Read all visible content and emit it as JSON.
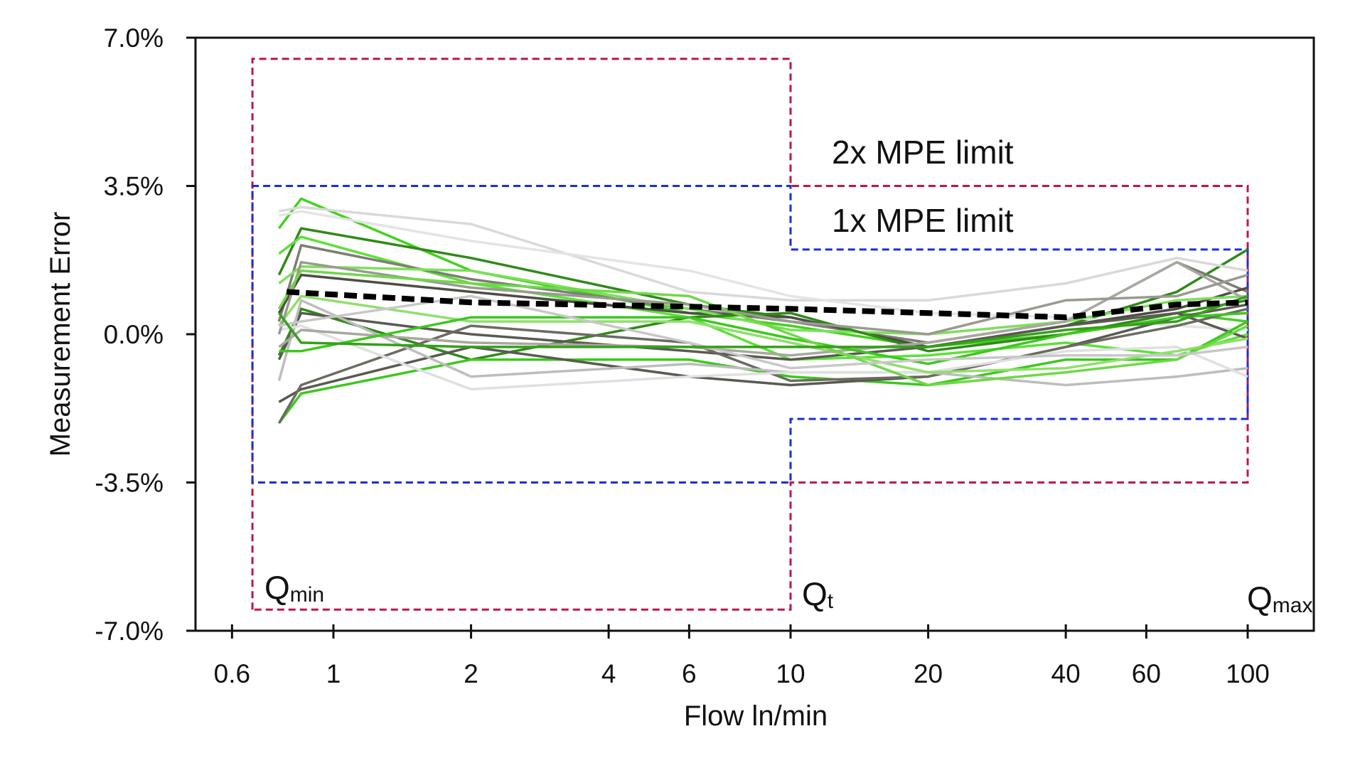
{
  "chart_data": {
    "type": "line",
    "title": "",
    "xlabel": "Flow ln/min",
    "ylabel": "Measurement Error",
    "xscale": "log",
    "xlim": [
      0.55,
      170
    ],
    "ylim": [
      -7.0,
      7.0
    ],
    "xticks": [
      0.6,
      1,
      2,
      4,
      6,
      10,
      20,
      40,
      60,
      100
    ],
    "xtick_labels": [
      "0.6",
      "1",
      "2",
      "4",
      "6",
      "10",
      "20",
      "40",
      "60",
      "100"
    ],
    "yticks": [
      7.0,
      3.5,
      0.0,
      -3.5,
      -7.0
    ],
    "ytick_labels": [
      "7.0%",
      "3.5%",
      "0.0%",
      "-3.5%",
      "-7.0%"
    ],
    "grid": false,
    "x": [
      0.76,
      0.85,
      2,
      6,
      10,
      20,
      40,
      70,
      100
    ],
    "series": [
      {
        "color": "#44d020",
        "values": [
          2.5,
          3.2,
          1.5,
          0.5,
          0.2,
          -0.3,
          0.0,
          0.5,
          0.3
        ]
      },
      {
        "color": "#2f8a17",
        "values": [
          1.4,
          2.5,
          1.8,
          0.7,
          0.4,
          -0.3,
          0.2,
          1.0,
          2.0
        ]
      },
      {
        "color": "#5ee03a",
        "values": [
          1.9,
          2.3,
          1.2,
          0.4,
          -0.6,
          -0.5,
          -0.2,
          -0.5,
          0.0
        ]
      },
      {
        "color": "#d9d9d9",
        "values": [
          2.9,
          3.0,
          2.6,
          1.0,
          0.8,
          0.8,
          1.2,
          1.8,
          1.5
        ]
      },
      {
        "color": "#e4e4e4",
        "values": [
          2.8,
          2.9,
          2.2,
          1.5,
          0.9,
          0.5,
          0.4,
          0.2,
          0.1
        ]
      },
      {
        "color": "#7d7d75",
        "values": [
          0.3,
          2.1,
          1.3,
          0.6,
          0.3,
          -0.2,
          0.3,
          1.7,
          1.0
        ]
      },
      {
        "color": "#4d4d45",
        "values": [
          0.5,
          1.4,
          1.0,
          0.5,
          0.4,
          -0.3,
          0.2,
          0.6,
          1.1
        ]
      },
      {
        "color": "#7be05a",
        "values": [
          1.2,
          1.6,
          1.5,
          0.6,
          0.1,
          0.0,
          0.3,
          0.8,
          0.9
        ]
      },
      {
        "color": "#2f8a17",
        "values": [
          -0.5,
          0.6,
          -0.6,
          0.4,
          0.5,
          -0.4,
          0.0,
          0.5,
          0.8
        ]
      },
      {
        "color": "#5a5a52",
        "values": [
          -0.6,
          0.5,
          0.0,
          -0.4,
          -0.6,
          -0.3,
          0.2,
          0.5,
          -0.1
        ]
      },
      {
        "color": "#3cc81e",
        "values": [
          -2.1,
          -1.4,
          -0.6,
          -0.6,
          -1.0,
          -1.2,
          -0.6,
          -0.6,
          0.3
        ]
      },
      {
        "color": "#5a5a52",
        "values": [
          -1.6,
          -1.3,
          -0.3,
          -1.0,
          -1.2,
          -1.0,
          -0.3,
          0.4,
          0.7
        ]
      },
      {
        "color": "#6b6b62",
        "values": [
          -2.1,
          -1.2,
          0.2,
          -0.2,
          -1.1,
          -1.0,
          -0.3,
          0.2,
          0.6
        ]
      },
      {
        "color": "#bdbdbd",
        "values": [
          -1.1,
          0.8,
          -1.0,
          -0.7,
          -0.9,
          -0.9,
          -1.2,
          -1.0,
          -0.8
        ]
      },
      {
        "color": "#e0e0e0",
        "values": [
          0.1,
          0.2,
          -1.3,
          -1.0,
          -0.9,
          -0.9,
          -0.4,
          -0.3,
          -1.0
        ]
      },
      {
        "color": "#8fe06a",
        "values": [
          0.2,
          0.9,
          0.3,
          0.3,
          -0.2,
          -0.9,
          -0.8,
          -0.4,
          -0.1
        ]
      },
      {
        "color": "#a8a8a0",
        "values": [
          -0.3,
          0.1,
          -0.2,
          -0.3,
          -0.5,
          -0.2,
          0.3,
          1.7,
          0.8
        ]
      },
      {
        "color": "#3cc81e",
        "values": [
          -0.4,
          -0.4,
          0.4,
          0.4,
          -0.1,
          -0.7,
          0.0,
          0.4,
          0.5
        ]
      },
      {
        "color": "#9a9a92",
        "values": [
          0.0,
          1.7,
          1.1,
          0.7,
          0.3,
          0.0,
          0.8,
          0.9,
          1.4
        ]
      },
      {
        "color": "#6fd848",
        "values": [
          0.6,
          1.5,
          1.2,
          0.9,
          0.0,
          -1.2,
          -0.9,
          -0.6,
          0.2
        ]
      },
      {
        "color": "#c8c8c8",
        "values": [
          0.2,
          0.3,
          0.9,
          -0.2,
          -0.8,
          -0.6,
          -0.5,
          -0.5,
          -0.3
        ]
      },
      {
        "color": "#35a01a",
        "values": [
          0.5,
          -0.2,
          -0.3,
          -0.3,
          -0.3,
          -0.3,
          0.1,
          0.3,
          0.9
        ]
      }
    ],
    "mean": {
      "color": "#000000",
      "x": [
        0.79,
        2,
        6,
        10,
        20,
        40,
        70,
        100
      ],
      "values": [
        1.0,
        0.75,
        0.65,
        0.6,
        0.5,
        0.4,
        0.7,
        0.75
      ]
    },
    "limits": [
      {
        "name": "2x MPE limit",
        "color": "#c0144c",
        "segments": [
          {
            "x": [
              0.665,
              10
            ],
            "upper": 6.5,
            "lower": -6.5
          },
          {
            "x": [
              10,
              100
            ],
            "upper": 3.5,
            "lower": -3.5
          }
        ]
      },
      {
        "name": "1x MPE limit",
        "color": "#1a2ed8",
        "segments": [
          {
            "x": [
              0.665,
              10
            ],
            "upper": 3.5,
            "lower": -3.5
          },
          {
            "x": [
              10,
              100
            ],
            "upper": 2.0,
            "lower": -2.0
          }
        ]
      }
    ],
    "annotations": {
      "mpe2": "2x MPE limit",
      "mpe1": "1x MPE limit",
      "qmin": {
        "main": "Q",
        "sub": "min"
      },
      "qt": {
        "main": "Q",
        "sub": "t"
      },
      "qmax": {
        "main": "Q",
        "sub": "max"
      }
    }
  }
}
